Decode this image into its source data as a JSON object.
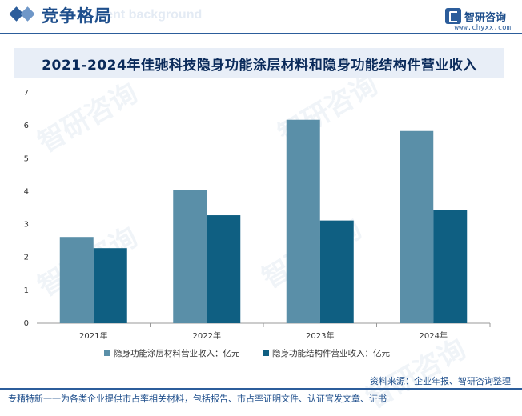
{
  "header": {
    "title": "竞争格局",
    "ghost_text": "ment background",
    "brand_name": "智研咨询",
    "brand_url": "www.chyxx.com"
  },
  "watermark_text": "智研咨询",
  "colors": {
    "series_1": "#5a8fa8",
    "series_2": "#0f5f82",
    "accent": "#2c5d9b"
  },
  "chart_data": {
    "type": "bar",
    "title": "2021-2024年佳驰科技隐身功能涂层材料和隐身功能结构件营业收入",
    "categories": [
      "2021年",
      "2022年",
      "2023年",
      "2024年"
    ],
    "series": [
      {
        "name": "隐身功能涂层材料营业收入：亿元",
        "values": [
          2.62,
          4.05,
          6.18,
          5.84
        ]
      },
      {
        "name": "隐身功能结构件营业收入：亿元",
        "values": [
          2.28,
          3.28,
          3.12,
          3.43
        ]
      }
    ],
    "ylim": [
      0,
      7
    ],
    "yticks": [
      0,
      1,
      2,
      3,
      4,
      5,
      6,
      7
    ],
    "grid": false,
    "legend": "bottom"
  },
  "footer": {
    "source": "资料来源：企业年报、智研咨询整理",
    "slogan": "专精特新一一为各类企业提供市占率相关材料，包括报告、市占率证明文件、认证官发文章、证书"
  }
}
